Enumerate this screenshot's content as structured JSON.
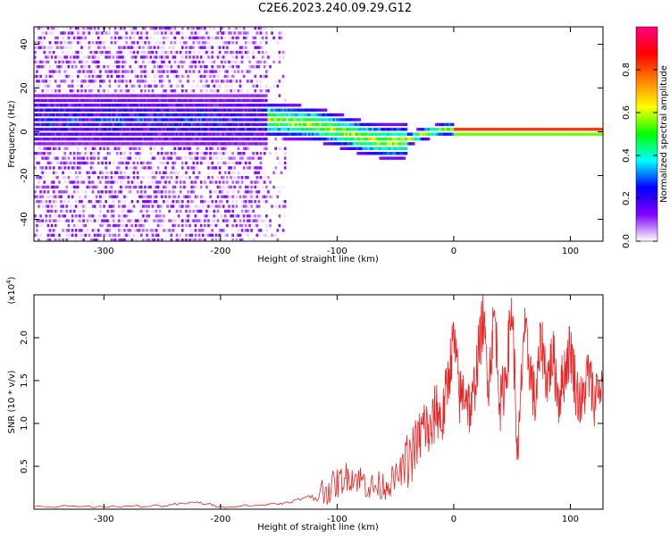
{
  "title": "C2E6.2023.240.09.29.G12",
  "chart_data": [
    {
      "type": "heatmap",
      "title": "C2E6.2023.240.09.29.G12",
      "xlabel": "Height of straight line (km)",
      "ylabel": "Frequency (Hz)",
      "xlim": [
        -360,
        128
      ],
      "ylim": [
        -50,
        48
      ],
      "xticks": [
        -300,
        -200,
        -100,
        0,
        100
      ],
      "yticks": [
        -40,
        -20,
        0,
        20,
        40
      ],
      "xtick_labels": [
        "-300",
        "-200",
        "-100",
        "0",
        "100"
      ],
      "ytick_labels": [
        "-40",
        "-20",
        "0",
        "20",
        "40"
      ],
      "colorbar": {
        "label": "Normalized spectral amplitude",
        "range": [
          0,
          1
        ],
        "ticks": [
          0.0,
          0.2,
          0.4,
          0.6,
          0.8
        ],
        "tick_labels": [
          "0.0",
          "0.2",
          "0.4",
          "0.6",
          "0.8"
        ],
        "colormap": [
          "#ffffff",
          "#8000ff",
          "#0000ff",
          "#00ffff",
          "#00ff00",
          "#ffff00",
          "#ff8000",
          "#ff0000",
          "#ff0080"
        ]
      },
      "ridge": {
        "x": [
          -360,
          -300,
          -250,
          -200,
          -160,
          -120,
          -100,
          -80,
          -60,
          -45,
          -30,
          -15,
          -5,
          0,
          20,
          50,
          128
        ],
        "y": [
          5,
          5,
          5,
          4,
          5,
          3,
          0,
          -3,
          -5,
          -5,
          -2,
          0,
          1,
          0,
          0,
          0,
          0
        ]
      }
    },
    {
      "type": "line",
      "xlabel": "Height of straight line (km)",
      "ylabel": "SNR (10 * v/v)",
      "y_multiplier_label": "(x10",
      "y_multiplier_exp": "4",
      "y_multiplier_close": ")",
      "xlim": [
        -360,
        128
      ],
      "ylim": [
        0,
        2.5
      ],
      "xticks": [
        -300,
        -200,
        -100,
        0,
        100
      ],
      "yticks": [
        0.5,
        1.0,
        1.5,
        2.0
      ],
      "xtick_labels": [
        "-300",
        "-200",
        "-100",
        "0",
        "100"
      ],
      "ytick_labels": [
        "0.5",
        "1.0",
        "1.5",
        "2.0"
      ],
      "line_color": "#ee2222",
      "x": [
        -360,
        -300,
        -250,
        -220,
        -200,
        -150,
        -130,
        -110,
        -100,
        -90,
        -80,
        -70,
        -60,
        -50,
        -40,
        -30,
        -25,
        -20,
        -15,
        -10,
        -5,
        0,
        5,
        10,
        15,
        20,
        25,
        30,
        35,
        40,
        45,
        50,
        55,
        60,
        65,
        70,
        75,
        80,
        85,
        90,
        95,
        100,
        105,
        110,
        115,
        120,
        128
      ],
      "y": [
        0.03,
        0.03,
        0.04,
        0.08,
        0.03,
        0.06,
        0.12,
        0.22,
        0.3,
        0.4,
        0.35,
        0.25,
        0.28,
        0.35,
        0.55,
        0.8,
        1.0,
        0.85,
        1.2,
        1.0,
        1.5,
        2.0,
        1.3,
        1.4,
        1.1,
        1.7,
        2.2,
        1.5,
        2.3,
        1.2,
        1.6,
        2.4,
        0.5,
        2.1,
        1.7,
        1.2,
        2.0,
        1.5,
        1.8,
        1.3,
        1.6,
        1.9,
        1.4,
        1.2,
        1.6,
        1.3,
        1.5
      ]
    }
  ]
}
